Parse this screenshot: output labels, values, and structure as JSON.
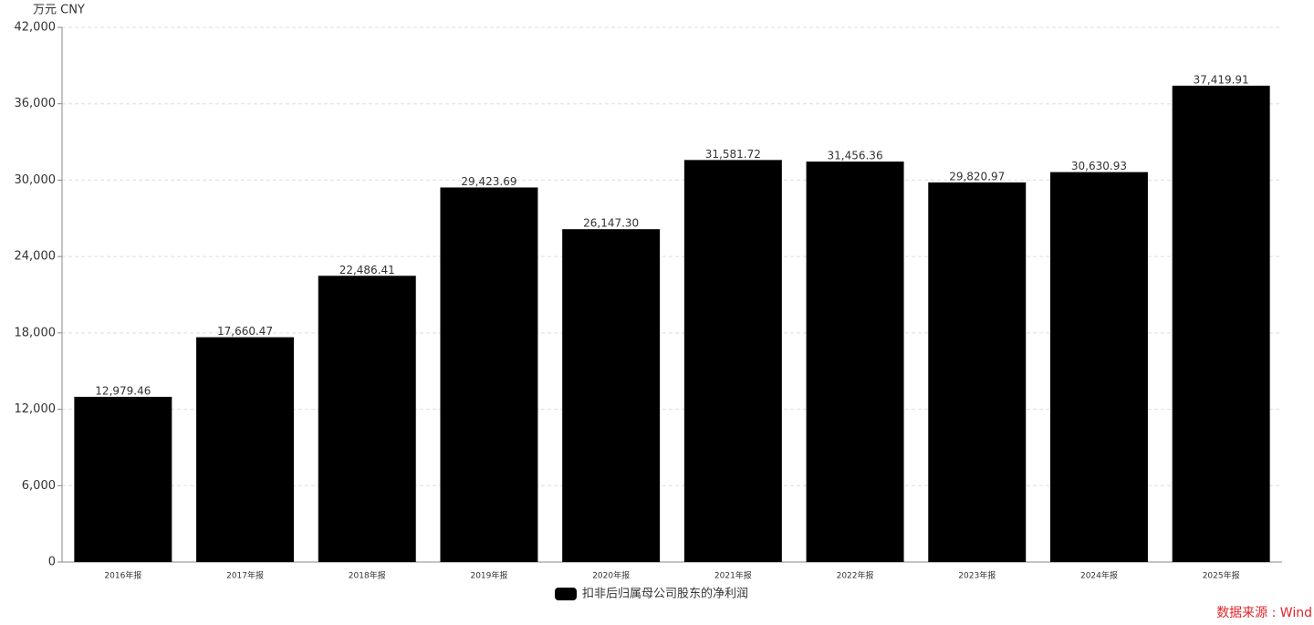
{
  "chart_data": {
    "type": "bar",
    "y_label": "万元  CNY",
    "categories": [
      "2016年报",
      "2017年报",
      "2018年报",
      "2019年报",
      "2020年报",
      "2021年报",
      "2022年报",
      "2023年报",
      "2024年报",
      "2025年报"
    ],
    "series": [
      {
        "name": "扣非后归属母公司股东的净利润",
        "color": "#000000",
        "values": [
          12979.46,
          17660.47,
          22486.41,
          29423.69,
          26147.3,
          31581.72,
          31456.36,
          29820.97,
          30630.93,
          37419.91
        ],
        "value_labels": [
          "12,979.46",
          "17,660.47",
          "22,486.41",
          "29,423.69",
          "26,147.30",
          "31,581.72",
          "31,456.36",
          "29,820.97",
          "30,630.93",
          "37,419.91"
        ]
      }
    ],
    "ylim": [
      0,
      42000
    ],
    "yticks": [
      0,
      {
        "value": 6000,
        "label": "6,000"
      },
      {
        "value": 12000,
        "label": "12,000"
      },
      {
        "value": 18000,
        "label": "18,000"
      },
      {
        "value": 24000,
        "label": "24,000"
      },
      {
        "value": 30000,
        "label": "30,000"
      },
      {
        "value": 36000,
        "label": "36,000"
      },
      {
        "value": 42000,
        "label": "42,000"
      }
    ],
    "grid": true,
    "source": "数据来源 : Wind"
  }
}
